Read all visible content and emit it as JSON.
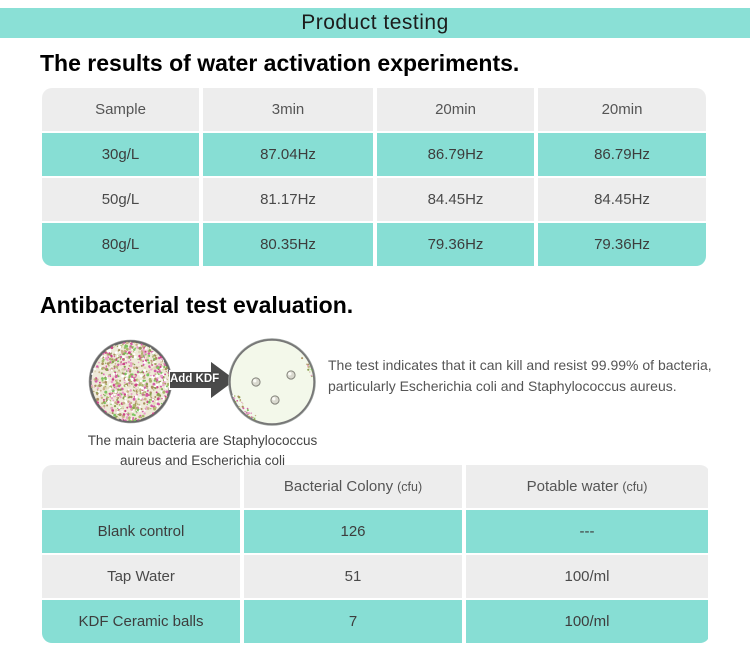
{
  "colors": {
    "header_teal": "#8ae0d6",
    "accent_teal": "#87ded4",
    "light_gray": "#ededed",
    "arrow_gray": "#4a4a4a"
  },
  "header": {
    "title": "Product testing"
  },
  "activation_section": {
    "title": "The results of water activation experiments.",
    "table": {
      "columns": [
        "Sample",
        "3min",
        "20min",
        "20min"
      ],
      "rows": [
        [
          "30g/L",
          "87.04Hz",
          "86.79Hz",
          "86.79Hz"
        ],
        [
          "50g/L",
          "81.17Hz",
          "84.45Hz",
          "84.45Hz"
        ],
        [
          "80g/L",
          "80.35Hz",
          "79.36Hz",
          "79.36Hz"
        ]
      ]
    }
  },
  "antibacterial_section": {
    "title": "Antibacterial test evaluation.",
    "figure": {
      "arrow_label": "Add KDF",
      "caption": "The main bacteria are Staphylococcus aureus and Escherichia coli",
      "description": "The test indicates that it can kill and resist 99.99% of bacteria, particularly Escherichia coli and Staphylococcus aureus."
    },
    "table": {
      "columns": [
        {
          "label": "",
          "unit": ""
        },
        {
          "label": "Bacterial Colony",
          "unit": "(cfu)"
        },
        {
          "label": "Potable water",
          "unit": "(cfu)"
        }
      ],
      "rows": [
        [
          "Blank control",
          "126",
          "---"
        ],
        [
          "Tap Water",
          "51",
          "100/ml"
        ],
        [
          "KDF Ceramic balls",
          "7",
          "100/ml"
        ]
      ]
    }
  }
}
